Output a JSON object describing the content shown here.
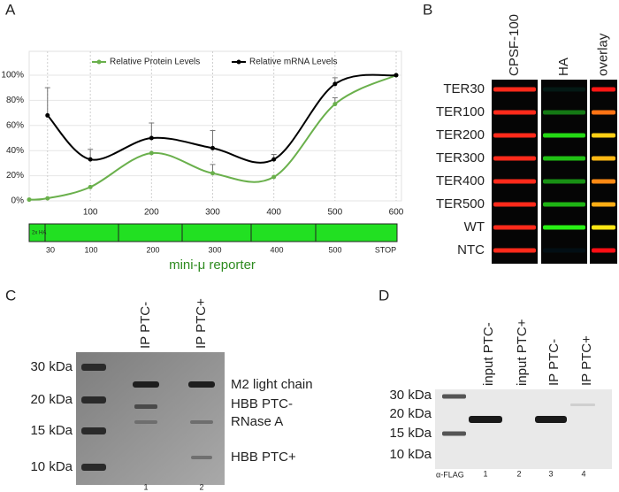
{
  "chart_data": {
    "type": "line",
    "x": [
      0,
      30,
      100,
      200,
      300,
      400,
      500,
      600
    ],
    "xlim": [
      0,
      600
    ],
    "xticks": [
      100,
      200,
      300,
      400,
      500,
      600
    ],
    "ylim": [
      0,
      119
    ],
    "yticks": [
      {
        "value": 0,
        "label": "0%"
      },
      {
        "value": 20,
        "label": "20%"
      },
      {
        "value": 40,
        "label": "40%"
      },
      {
        "value": 60,
        "label": "60%"
      },
      {
        "value": 80,
        "label": "80%"
      },
      {
        "value": 100,
        "label": "100%"
      }
    ],
    "grid": true,
    "legend": "top",
    "series": [
      {
        "name": "Relative Protein Levels",
        "color": "#6ab04c",
        "values": [
          1,
          2,
          11,
          38,
          22,
          19,
          77,
          100
        ],
        "errors": [
          null,
          null,
          null,
          null,
          7,
          null,
          5,
          null
        ]
      },
      {
        "name": "Relative mRNA Levels",
        "color": "#000000",
        "values": [
          null,
          68,
          33,
          50,
          42,
          33,
          93,
          100
        ],
        "errors": [
          null,
          22,
          8,
          12,
          14,
          4,
          5,
          null
        ]
      }
    ]
  },
  "panel_labels": [
    "A",
    "B",
    "C",
    "D"
  ],
  "reporter": {
    "tag": "2x HA",
    "positions": [
      "30",
      "100",
      "200",
      "300",
      "400",
      "500",
      "STOP"
    ],
    "label": "mini-μ reporter"
  },
  "panel_b": {
    "columns": [
      "CPSF-100",
      "HA",
      "overlay"
    ],
    "rows": [
      "TER30",
      "TER100",
      "TER200",
      "TER300",
      "TER400",
      "TER500",
      "WT",
      "NTC"
    ]
  },
  "panel_c": {
    "markers": [
      "30 kDa",
      "20 kDa",
      "15 kDa",
      "10 kDa"
    ],
    "lanes": [
      "IP PTC-",
      "IP PTC+"
    ],
    "lane_numbers": [
      "1",
      "2"
    ],
    "bands": [
      "M2 light chain",
      "HBB PTC-",
      "RNase A",
      "HBB PTC+"
    ]
  },
  "panel_d": {
    "markers": [
      "30 kDa",
      "20 kDa",
      "15 kDa",
      "10 kDa"
    ],
    "lanes": [
      "input PTC-",
      "input PTC+",
      "IP PTC-",
      "IP PTC+"
    ],
    "lane_numbers": [
      "1",
      "2",
      "3",
      "4"
    ],
    "antibody": "α-FLAG"
  }
}
